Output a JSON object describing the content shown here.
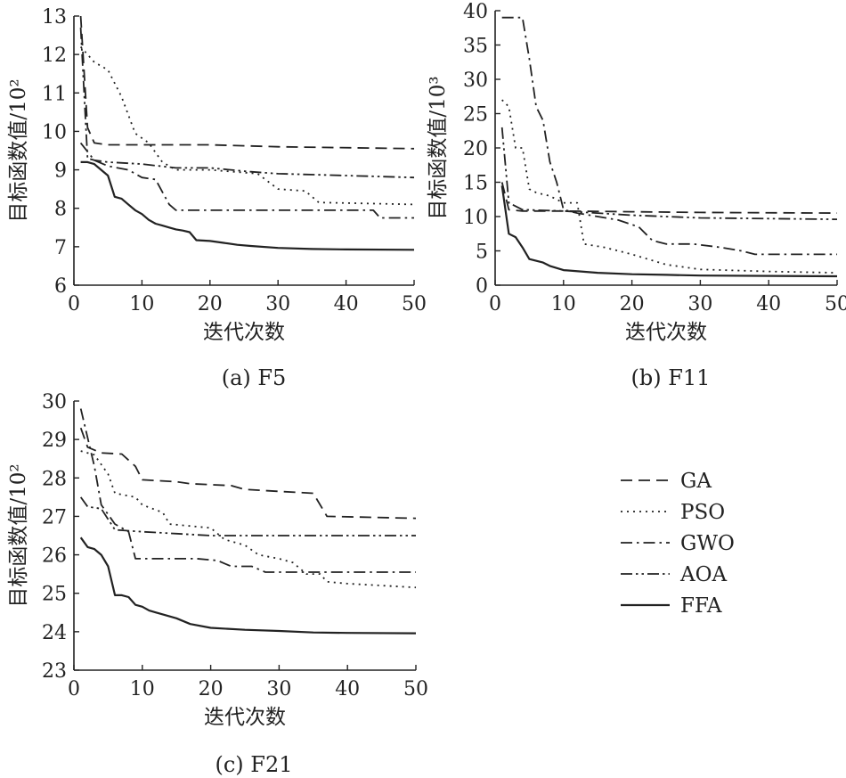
{
  "chart_data": [
    {
      "type": "line",
      "caption": "(a) F5",
      "xlabel": "迭代次数",
      "ylabel": "目标函数值/10²",
      "xlim": [
        0,
        50
      ],
      "ylim": [
        6,
        13
      ],
      "xticks": [
        0,
        10,
        20,
        30,
        40,
        50
      ],
      "yticks": [
        6,
        7,
        8,
        9,
        10,
        11,
        12,
        13
      ],
      "series": [
        {
          "name": "GA",
          "style": "dashed",
          "points": [
            [
              1,
              13
            ],
            [
              2,
              10.1
            ],
            [
              3,
              9.7
            ],
            [
              5,
              9.65
            ],
            [
              10,
              9.65
            ],
            [
              20,
              9.65
            ],
            [
              30,
              9.6
            ],
            [
              50,
              9.55
            ]
          ]
        },
        {
          "name": "PSO",
          "style": "dotted",
          "points": [
            [
              1,
              12.2
            ],
            [
              2,
              12.0
            ],
            [
              3,
              11.8
            ],
            [
              5,
              11.6
            ],
            [
              7,
              10.9
            ],
            [
              9,
              9.95
            ],
            [
              11,
              9.7
            ],
            [
              13,
              9.2
            ],
            [
              15,
              9.0
            ],
            [
              20,
              9.0
            ],
            [
              27,
              8.9
            ],
            [
              30,
              8.5
            ],
            [
              34,
              8.45
            ],
            [
              36,
              8.15
            ],
            [
              50,
              8.1
            ]
          ]
        },
        {
          "name": "GWO",
          "style": "dashdot",
          "points": [
            [
              1,
              9.7
            ],
            [
              3,
              9.25
            ],
            [
              5,
              9.1
            ],
            [
              8,
              9.0
            ],
            [
              10,
              8.8
            ],
            [
              12,
              8.75
            ],
            [
              14,
              8.1
            ],
            [
              15,
              7.95
            ],
            [
              30,
              7.95
            ],
            [
              44,
              7.95
            ],
            [
              45,
              7.75
            ],
            [
              50,
              7.75
            ]
          ]
        },
        {
          "name": "AOA",
          "style": "dashdotdot",
          "points": [
            [
              1,
              12.7
            ],
            [
              2,
              9.3
            ],
            [
              3,
              9.25
            ],
            [
              5,
              9.2
            ],
            [
              10,
              9.15
            ],
            [
              15,
              9.05
            ],
            [
              20,
              9.05
            ],
            [
              26,
              8.95
            ],
            [
              30,
              8.9
            ],
            [
              40,
              8.85
            ],
            [
              50,
              8.8
            ]
          ]
        },
        {
          "name": "FFA",
          "style": "solid",
          "points": [
            [
              1,
              9.2
            ],
            [
              2,
              9.2
            ],
            [
              3,
              9.15
            ],
            [
              4,
              9.0
            ],
            [
              5,
              8.85
            ],
            [
              6,
              8.3
            ],
            [
              7,
              8.25
            ],
            [
              8,
              8.1
            ],
            [
              9,
              7.95
            ],
            [
              10,
              7.85
            ],
            [
              11,
              7.7
            ],
            [
              12,
              7.6
            ],
            [
              13,
              7.55
            ],
            [
              14,
              7.5
            ],
            [
              15,
              7.45
            ],
            [
              16,
              7.42
            ],
            [
              17,
              7.38
            ],
            [
              18,
              7.17
            ],
            [
              20,
              7.15
            ],
            [
              22,
              7.1
            ],
            [
              24,
              7.05
            ],
            [
              26,
              7.02
            ],
            [
              30,
              6.97
            ],
            [
              35,
              6.94
            ],
            [
              40,
              6.93
            ],
            [
              50,
              6.92
            ]
          ]
        }
      ]
    },
    {
      "type": "line",
      "caption": "(b) F11",
      "xlabel": "迭代次数",
      "ylabel": "目标函数值/10³",
      "xlim": [
        0,
        50
      ],
      "ylim": [
        0,
        40
      ],
      "xticks": [
        0,
        10,
        20,
        30,
        40,
        50
      ],
      "yticks": [
        0,
        5,
        10,
        15,
        20,
        25,
        30,
        35,
        40
      ],
      "series": [
        {
          "name": "GA",
          "style": "dashed",
          "points": [
            [
              1,
              15
            ],
            [
              2,
              11
            ],
            [
              4,
              10.8
            ],
            [
              10,
              10.8
            ],
            [
              20,
              10.7
            ],
            [
              30,
              10.6
            ],
            [
              50,
              10.5
            ]
          ]
        },
        {
          "name": "PSO",
          "style": "dotted",
          "points": [
            [
              1,
              27
            ],
            [
              2,
              26
            ],
            [
              3,
              20
            ],
            [
              4,
              20
            ],
            [
              5,
              14
            ],
            [
              6,
              13.5
            ],
            [
              8,
              13
            ],
            [
              9,
              12.5
            ],
            [
              10,
              12
            ],
            [
              12,
              12
            ],
            [
              13,
              6
            ],
            [
              16,
              5.5
            ],
            [
              20,
              4.5
            ],
            [
              25,
              3
            ],
            [
              30,
              2.3
            ],
            [
              40,
              2
            ],
            [
              50,
              1.8
            ]
          ]
        },
        {
          "name": "GWO",
          "style": "dashdot",
          "points": [
            [
              1,
              39
            ],
            [
              4,
              39
            ],
            [
              5,
              33
            ],
            [
              6,
              26
            ],
            [
              7,
              24
            ],
            [
              8,
              18
            ],
            [
              9,
              15
            ],
            [
              10,
              11
            ],
            [
              12,
              10.5
            ],
            [
              15,
              10
            ],
            [
              18,
              9.5
            ],
            [
              21,
              8.5
            ],
            [
              23,
              6.5
            ],
            [
              25,
              6
            ],
            [
              29,
              6
            ],
            [
              33,
              5.5
            ],
            [
              36,
              5
            ],
            [
              38,
              4.5
            ],
            [
              50,
              4.5
            ]
          ]
        },
        {
          "name": "AOA",
          "style": "dashdotdot",
          "points": [
            [
              1,
              23
            ],
            [
              2,
              12
            ],
            [
              4,
              11
            ],
            [
              10,
              10.8
            ],
            [
              20,
              10.2
            ],
            [
              30,
              9.8
            ],
            [
              40,
              9.7
            ],
            [
              50,
              9.6
            ]
          ]
        },
        {
          "name": "FFA",
          "style": "solid",
          "points": [
            [
              1,
              14.5
            ],
            [
              2,
              7.5
            ],
            [
              3,
              7
            ],
            [
              4,
              5.5
            ],
            [
              5,
              3.8
            ],
            [
              7,
              3.3
            ],
            [
              8,
              2.8
            ],
            [
              10,
              2.2
            ],
            [
              15,
              1.8
            ],
            [
              20,
              1.6
            ],
            [
              25,
              1.5
            ],
            [
              30,
              1.4
            ],
            [
              50,
              1.3
            ]
          ]
        }
      ]
    },
    {
      "type": "line",
      "caption": "(c) F21",
      "xlabel": "迭代次数",
      "ylabel": "目标函数值/10²",
      "xlim": [
        0,
        50
      ],
      "ylim": [
        23,
        30
      ],
      "xticks": [
        0,
        10,
        20,
        30,
        40,
        50
      ],
      "yticks": [
        23,
        24,
        25,
        26,
        27,
        28,
        29,
        30
      ],
      "series": [
        {
          "name": "GA",
          "style": "dashed",
          "points": [
            [
              1,
              29.3
            ],
            [
              2,
              28.8
            ],
            [
              4,
              28.65
            ],
            [
              7,
              28.62
            ],
            [
              9,
              28.3
            ],
            [
              10,
              27.95
            ],
            [
              15,
              27.9
            ],
            [
              17,
              27.85
            ],
            [
              23,
              27.8
            ],
            [
              25,
              27.7
            ],
            [
              30,
              27.65
            ],
            [
              35,
              27.6
            ],
            [
              37,
              27.0
            ],
            [
              50,
              26.95
            ]
          ]
        },
        {
          "name": "PSO",
          "style": "dotted",
          "points": [
            [
              1,
              28.7
            ],
            [
              3,
              28.6
            ],
            [
              5,
              28.1
            ],
            [
              6,
              27.6
            ],
            [
              9,
              27.5
            ],
            [
              10,
              27.3
            ],
            [
              13,
              27.1
            ],
            [
              14,
              26.8
            ],
            [
              20,
              26.7
            ],
            [
              22,
              26.4
            ],
            [
              25,
              26.25
            ],
            [
              27,
              26.0
            ],
            [
              30,
              25.9
            ],
            [
              32,
              25.8
            ],
            [
              34,
              25.5
            ],
            [
              36,
              25.5
            ],
            [
              37,
              25.3
            ],
            [
              40,
              25.25
            ],
            [
              50,
              25.15
            ]
          ]
        },
        {
          "name": "GWO",
          "style": "dashdot",
          "points": [
            [
              1,
              29.8
            ],
            [
              3,
              28.3
            ],
            [
              4,
              27.3
            ],
            [
              6,
              26.8
            ],
            [
              8,
              26.6
            ],
            [
              9,
              25.9
            ],
            [
              12,
              25.9
            ],
            [
              18,
              25.9
            ],
            [
              21,
              25.85
            ],
            [
              23,
              25.7
            ],
            [
              26,
              25.7
            ],
            [
              28,
              25.55
            ],
            [
              35,
              25.55
            ],
            [
              50,
              25.55
            ]
          ]
        },
        {
          "name": "AOA",
          "style": "dashdotdot",
          "points": [
            [
              1,
              27.5
            ],
            [
              2,
              27.25
            ],
            [
              4,
              27.2
            ],
            [
              6,
              26.65
            ],
            [
              10,
              26.6
            ],
            [
              15,
              26.55
            ],
            [
              20,
              26.5
            ],
            [
              30,
              26.5
            ],
            [
              40,
              26.5
            ],
            [
              50,
              26.5
            ]
          ]
        },
        {
          "name": "FFA",
          "style": "solid",
          "points": [
            [
              1,
              26.45
            ],
            [
              2,
              26.2
            ],
            [
              3,
              26.15
            ],
            [
              4,
              26.0
            ],
            [
              5,
              25.7
            ],
            [
              6,
              24.95
            ],
            [
              7,
              24.95
            ],
            [
              8,
              24.9
            ],
            [
              9,
              24.7
            ],
            [
              10,
              24.65
            ],
            [
              11,
              24.55
            ],
            [
              12,
              24.5
            ],
            [
              13,
              24.45
            ],
            [
              15,
              24.35
            ],
            [
              17,
              24.2
            ],
            [
              20,
              24.1
            ],
            [
              25,
              24.05
            ],
            [
              30,
              24.02
            ],
            [
              35,
              23.98
            ],
            [
              40,
              23.97
            ],
            [
              50,
              23.96
            ]
          ]
        }
      ]
    }
  ],
  "legend": {
    "placement": "bottom-right",
    "entries": [
      {
        "label": "GA",
        "style": "dashed"
      },
      {
        "label": "PSO",
        "style": "dotted"
      },
      {
        "label": "GWO",
        "style": "dashdot"
      },
      {
        "label": "AOA",
        "style": "dashdotdot"
      },
      {
        "label": "FFA",
        "style": "solid"
      }
    ]
  },
  "line_color": "#222222"
}
